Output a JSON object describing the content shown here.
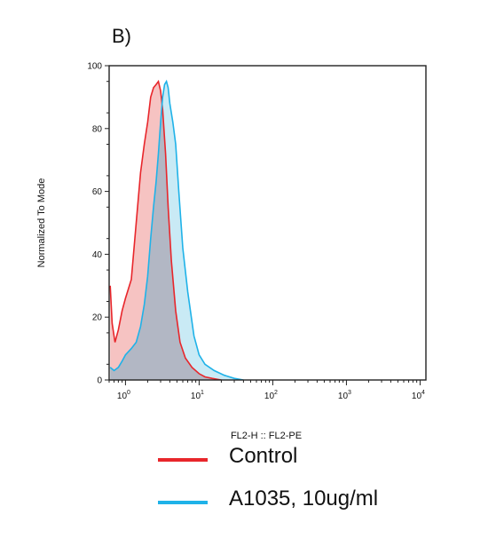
{
  "panel_label": "B)",
  "chart_data": {
    "type": "area",
    "xlabel": "FL2-H :: FL2-PE",
    "ylabel": "Normalized To Mode",
    "x_scale": "log",
    "xlim": [
      0.6,
      12000
    ],
    "ylim": [
      0,
      100
    ],
    "xticks": [
      {
        "label_base": "10",
        "label_exp": "0",
        "value": 1
      },
      {
        "label_base": "10",
        "label_exp": "1",
        "value": 10
      },
      {
        "label_base": "10",
        "label_exp": "2",
        "value": 100
      },
      {
        "label_base": "10",
        "label_exp": "3",
        "value": 1000
      },
      {
        "label_base": "10",
        "label_exp": "4",
        "value": 10000
      }
    ],
    "yticks": [
      "0",
      "20",
      "40",
      "60",
      "80",
      "100"
    ],
    "grid": false,
    "legend_placement": "below",
    "series": [
      {
        "name": "Control",
        "color": "#e8262b",
        "fill": "#f4b9b7",
        "x": [
          0.62,
          0.66,
          0.72,
          0.8,
          0.9,
          1.0,
          1.2,
          1.4,
          1.6,
          1.8,
          2.0,
          2.2,
          2.4,
          2.6,
          2.8,
          3.0,
          3.2,
          3.5,
          3.8,
          4.2,
          4.8,
          5.5,
          6.5,
          8.0,
          10,
          12,
          15,
          20
        ],
        "values": [
          30,
          18,
          12,
          16,
          22,
          26,
          32,
          50,
          66,
          75,
          82,
          90,
          93,
          94,
          95,
          92,
          86,
          72,
          55,
          38,
          22,
          12,
          7,
          4,
          2,
          1,
          0.5,
          0
        ]
      },
      {
        "name": "A1035, 10ug/ml",
        "color": "#1fb2e8",
        "fill": "#bfe6f3",
        "x": [
          0.62,
          0.7,
          0.8,
          0.9,
          1.0,
          1.2,
          1.4,
          1.6,
          1.8,
          2.0,
          2.2,
          2.4,
          2.6,
          2.8,
          3.0,
          3.2,
          3.4,
          3.6,
          3.8,
          4.0,
          4.4,
          4.8,
          5.3,
          6.0,
          7.0,
          8.5,
          10,
          12,
          16,
          22,
          30,
          40
        ],
        "values": [
          4,
          3,
          4,
          6,
          8,
          10,
          12,
          17,
          24,
          33,
          45,
          55,
          63,
          72,
          82,
          90,
          94,
          95,
          93,
          88,
          82,
          75,
          60,
          42,
          28,
          14,
          8,
          5,
          3,
          1.5,
          0.5,
          0
        ]
      }
    ],
    "overlap_fill": "#b2b7c4"
  }
}
